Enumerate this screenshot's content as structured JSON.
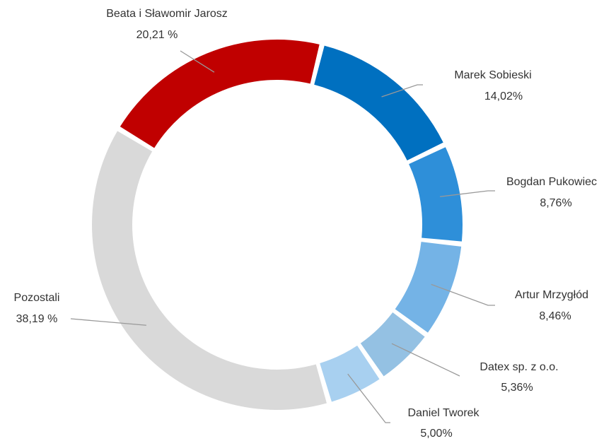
{
  "chart_data": {
    "type": "donut",
    "categories": [
      "Beata i Sławomir Jarosz",
      "Marek Sobieski",
      "Bogdan Pukowiec",
      "Artur Mrzygłód",
      "Datex sp. z o.o.",
      "Daniel Tworek",
      "Pozostali"
    ],
    "values": [
      20.21,
      14.02,
      8.76,
      8.46,
      5.36,
      5.0,
      38.19
    ],
    "value_labels": [
      "20,21 %",
      "14,02%",
      "8,76%",
      "8,46%",
      "5,36%",
      "5,00%",
      "38,19 %"
    ],
    "colors": [
      "#c00000",
      "#0070c0",
      "#2e8fd9",
      "#74b3e6",
      "#94c1e3",
      "#a8d0f0",
      "#d9d9d9"
    ]
  }
}
